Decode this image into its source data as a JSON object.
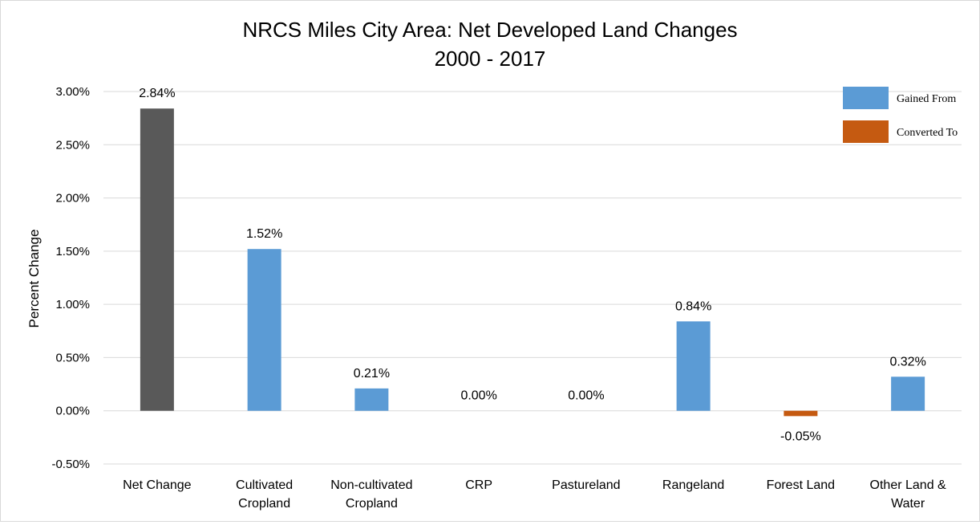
{
  "chart_data": {
    "type": "bar",
    "title": "NRCS Miles City Area: Net Developed Land Changes",
    "subtitle": "2000 - 2017",
    "ylabel": "Percent Change",
    "xlabel": "",
    "ylim": [
      -0.005,
      0.03
    ],
    "yticks": [
      "-0.50%",
      "0.00%",
      "0.50%",
      "1.00%",
      "1.50%",
      "2.00%",
      "2.50%",
      "3.00%"
    ],
    "categories": [
      [
        "Net Change"
      ],
      [
        "Cultivated",
        "Cropland"
      ],
      [
        "Non-cultivated",
        "Cropland"
      ],
      [
        "CRP"
      ],
      [
        "Pastureland"
      ],
      [
        "Rangeland"
      ],
      [
        "Forest Land"
      ],
      [
        "Other Land &",
        "Water"
      ]
    ],
    "values": [
      0.0284,
      0.0152,
      0.0021,
      0.0,
      0.0,
      0.0084,
      -0.0005,
      0.0032
    ],
    "labels": [
      "2.84%",
      "1.52%",
      "0.21%",
      "0.00%",
      "0.00%",
      "0.84%",
      "-0.05%",
      "0.32%"
    ],
    "bar_kind": [
      "net",
      "gained",
      "gained",
      "gained",
      "gained",
      "gained",
      "converted",
      "gained"
    ],
    "colors": {
      "net": "#595959",
      "gained": "#5b9bd5",
      "converted": "#c55a11",
      "grid": "#d9d9d9"
    },
    "legend": [
      {
        "name": "Gained From",
        "kind": "gained"
      },
      {
        "name": "Converted To",
        "kind": "converted"
      }
    ],
    "legend_position": "top-right",
    "grid": true
  }
}
